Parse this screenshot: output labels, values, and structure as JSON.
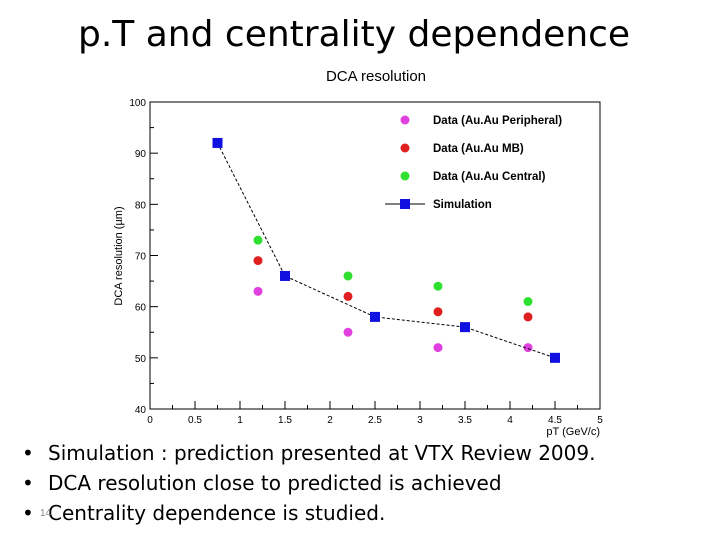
{
  "slide": {
    "title": "p.T and centrality  dependence",
    "bullets": [
      "Simulation : prediction presented at VTX Review 2009.",
      "DCA resolution close to predicted is achieved",
      "Centrality dependence is studied."
    ],
    "slide_number": "14"
  },
  "chart_data": {
    "type": "scatter",
    "title": "DCA resolution",
    "xlabel": "pT (GeV/c)",
    "ylabel": "DCA resolution (µm)",
    "xlim": [
      0,
      5
    ],
    "ylim": [
      40,
      100
    ],
    "xticks": [
      "0",
      "0.5",
      "1",
      "1.5",
      "2",
      "2.5",
      "3",
      "3.5",
      "4",
      "4.5",
      "5"
    ],
    "yticks": [
      "40",
      "50",
      "60",
      "70",
      "80",
      "90",
      "100"
    ],
    "legend_position": "top-right",
    "grid": false,
    "series": [
      {
        "name": "Data (Au.Au Peripheral)",
        "marker": "circle",
        "color": "#e040e0",
        "x": [
          1.2,
          2.2,
          3.2,
          4.2
        ],
        "y": [
          63,
          55,
          52,
          52
        ]
      },
      {
        "name": "Data (Au.Au MB)",
        "marker": "circle",
        "color": "#e02020",
        "x": [
          1.2,
          2.2,
          3.2,
          4.2
        ],
        "y": [
          69,
          62,
          59,
          58
        ]
      },
      {
        "name": "Data (Au.Au Central)",
        "marker": "circle",
        "color": "#30e030",
        "x": [
          1.2,
          2.2,
          3.2,
          4.2
        ],
        "y": [
          73,
          66,
          64,
          61
        ]
      },
      {
        "name": "Simulation",
        "marker": "square",
        "line": "dashed",
        "color": "#1010e0",
        "x": [
          0.75,
          1.5,
          2.5,
          3.5,
          4.5
        ],
        "y": [
          92,
          66,
          58,
          56,
          50
        ]
      }
    ]
  }
}
